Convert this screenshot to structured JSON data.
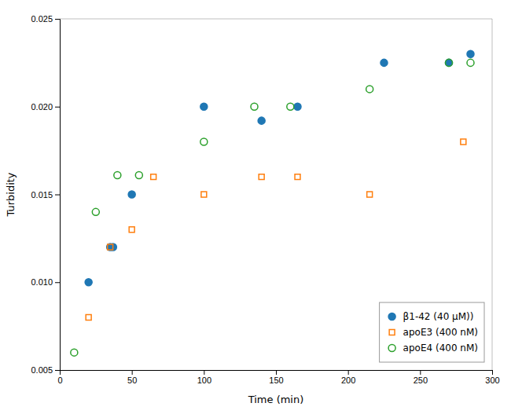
{
  "chart_data": {
    "type": "scatter",
    "xlabel": "Time (min)",
    "ylabel": "Turbidity",
    "series": [
      {
        "name": "β1-42 (40 μM))",
        "marker": "filled-circle",
        "x": [
          20,
          35,
          37,
          50,
          100,
          140,
          165,
          225,
          270,
          285
        ],
        "values": [
          0.01,
          0.012,
          0.012,
          0.015,
          0.02,
          0.0192,
          0.02,
          0.0225,
          0.0225,
          0.023
        ]
      },
      {
        "name": "apoE3 (400 nM)",
        "marker": "open-square",
        "x": [
          20,
          35,
          50,
          65,
          100,
          140,
          165,
          215,
          280
        ],
        "values": [
          0.008,
          0.012,
          0.013,
          0.016,
          0.015,
          0.016,
          0.016,
          0.015,
          0.018
        ]
      },
      {
        "name": "apoE4 (400 nM)",
        "marker": "open-circle",
        "x": [
          10,
          25,
          40,
          55,
          100,
          135,
          160,
          215,
          270,
          285
        ],
        "values": [
          0.006,
          0.014,
          0.0161,
          0.0161,
          0.018,
          0.02,
          0.02,
          0.021,
          0.0225,
          0.0225
        ]
      }
    ],
    "xlim": [
      0,
      300
    ],
    "ylim": [
      0.005,
      0.025
    ],
    "xticks": [
      0,
      50,
      100,
      150,
      200,
      250,
      300
    ],
    "yticks": [
      0.005,
      {
        "value": 0.01,
        "label": "0.010"
      },
      0.015,
      {
        "value": 0.02,
        "label": "0.020"
      },
      0.025
    ],
    "grid": false,
    "legend": "lower right"
  }
}
